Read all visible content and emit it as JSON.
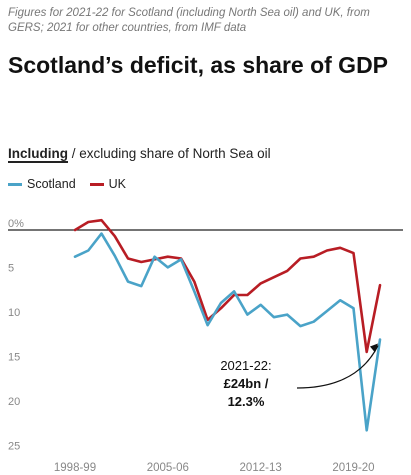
{
  "note": "Figures for 2021-22 for Scotland (including North Sea oil) and UK, from GERS; 2021 for other countries, from IMF data",
  "title": "Scotland’s deficit, as share of GDP",
  "toggle": {
    "active": "Including",
    "separator": " / ",
    "rest": "excluding share of North Sea oil"
  },
  "colors": {
    "scotland": "#4aa3c8",
    "uk": "#b81d24",
    "axis": "#222222",
    "tick": "#888888"
  },
  "chart_data": {
    "type": "line",
    "title": "Scotland’s deficit, as share of GDP",
    "xlabel": "",
    "ylabel": "",
    "x": [
      "1998-99",
      "1999-00",
      "2000-01",
      "2001-02",
      "2002-03",
      "2003-04",
      "2004-05",
      "2005-06",
      "2006-07",
      "2007-08",
      "2008-09",
      "2009-10",
      "2010-11",
      "2011-12",
      "2012-13",
      "2013-14",
      "2014-15",
      "2015-16",
      "2016-17",
      "2017-18",
      "2018-19",
      "2019-20",
      "2020-21",
      "2021-22"
    ],
    "x_tick_labels": [
      "1998-99",
      "2005-06",
      "2012-13",
      "2019-20"
    ],
    "y_tick_labels": [
      "0%",
      "5",
      "10",
      "15",
      "20",
      "25"
    ],
    "ylim": [
      0,
      25
    ],
    "y_inverted": true,
    "grid": false,
    "legend": "top-left",
    "series": [
      {
        "name": "Scotland",
        "values": [
          3.0,
          2.3,
          0.4,
          2.9,
          5.8,
          6.3,
          3.0,
          4.2,
          3.3,
          6.9,
          10.7,
          8.2,
          6.9,
          9.5,
          8.4,
          9.8,
          9.5,
          10.8,
          10.3,
          9.1,
          7.9,
          8.8,
          22.5,
          12.3
        ]
      },
      {
        "name": "UK",
        "values": [
          0.0,
          -0.9,
          -1.1,
          0.7,
          3.2,
          3.6,
          3.3,
          3.0,
          3.2,
          5.8,
          10.1,
          8.8,
          7.3,
          7.3,
          6.0,
          5.3,
          4.6,
          3.2,
          3.0,
          2.3,
          2.0,
          2.6,
          13.7,
          6.2
        ]
      }
    ],
    "annotation": {
      "lines": [
        "2021-22:",
        "£24bn /",
        "12.3%"
      ],
      "x": "2021-22",
      "series": "Scotland",
      "value": 12.3
    }
  }
}
